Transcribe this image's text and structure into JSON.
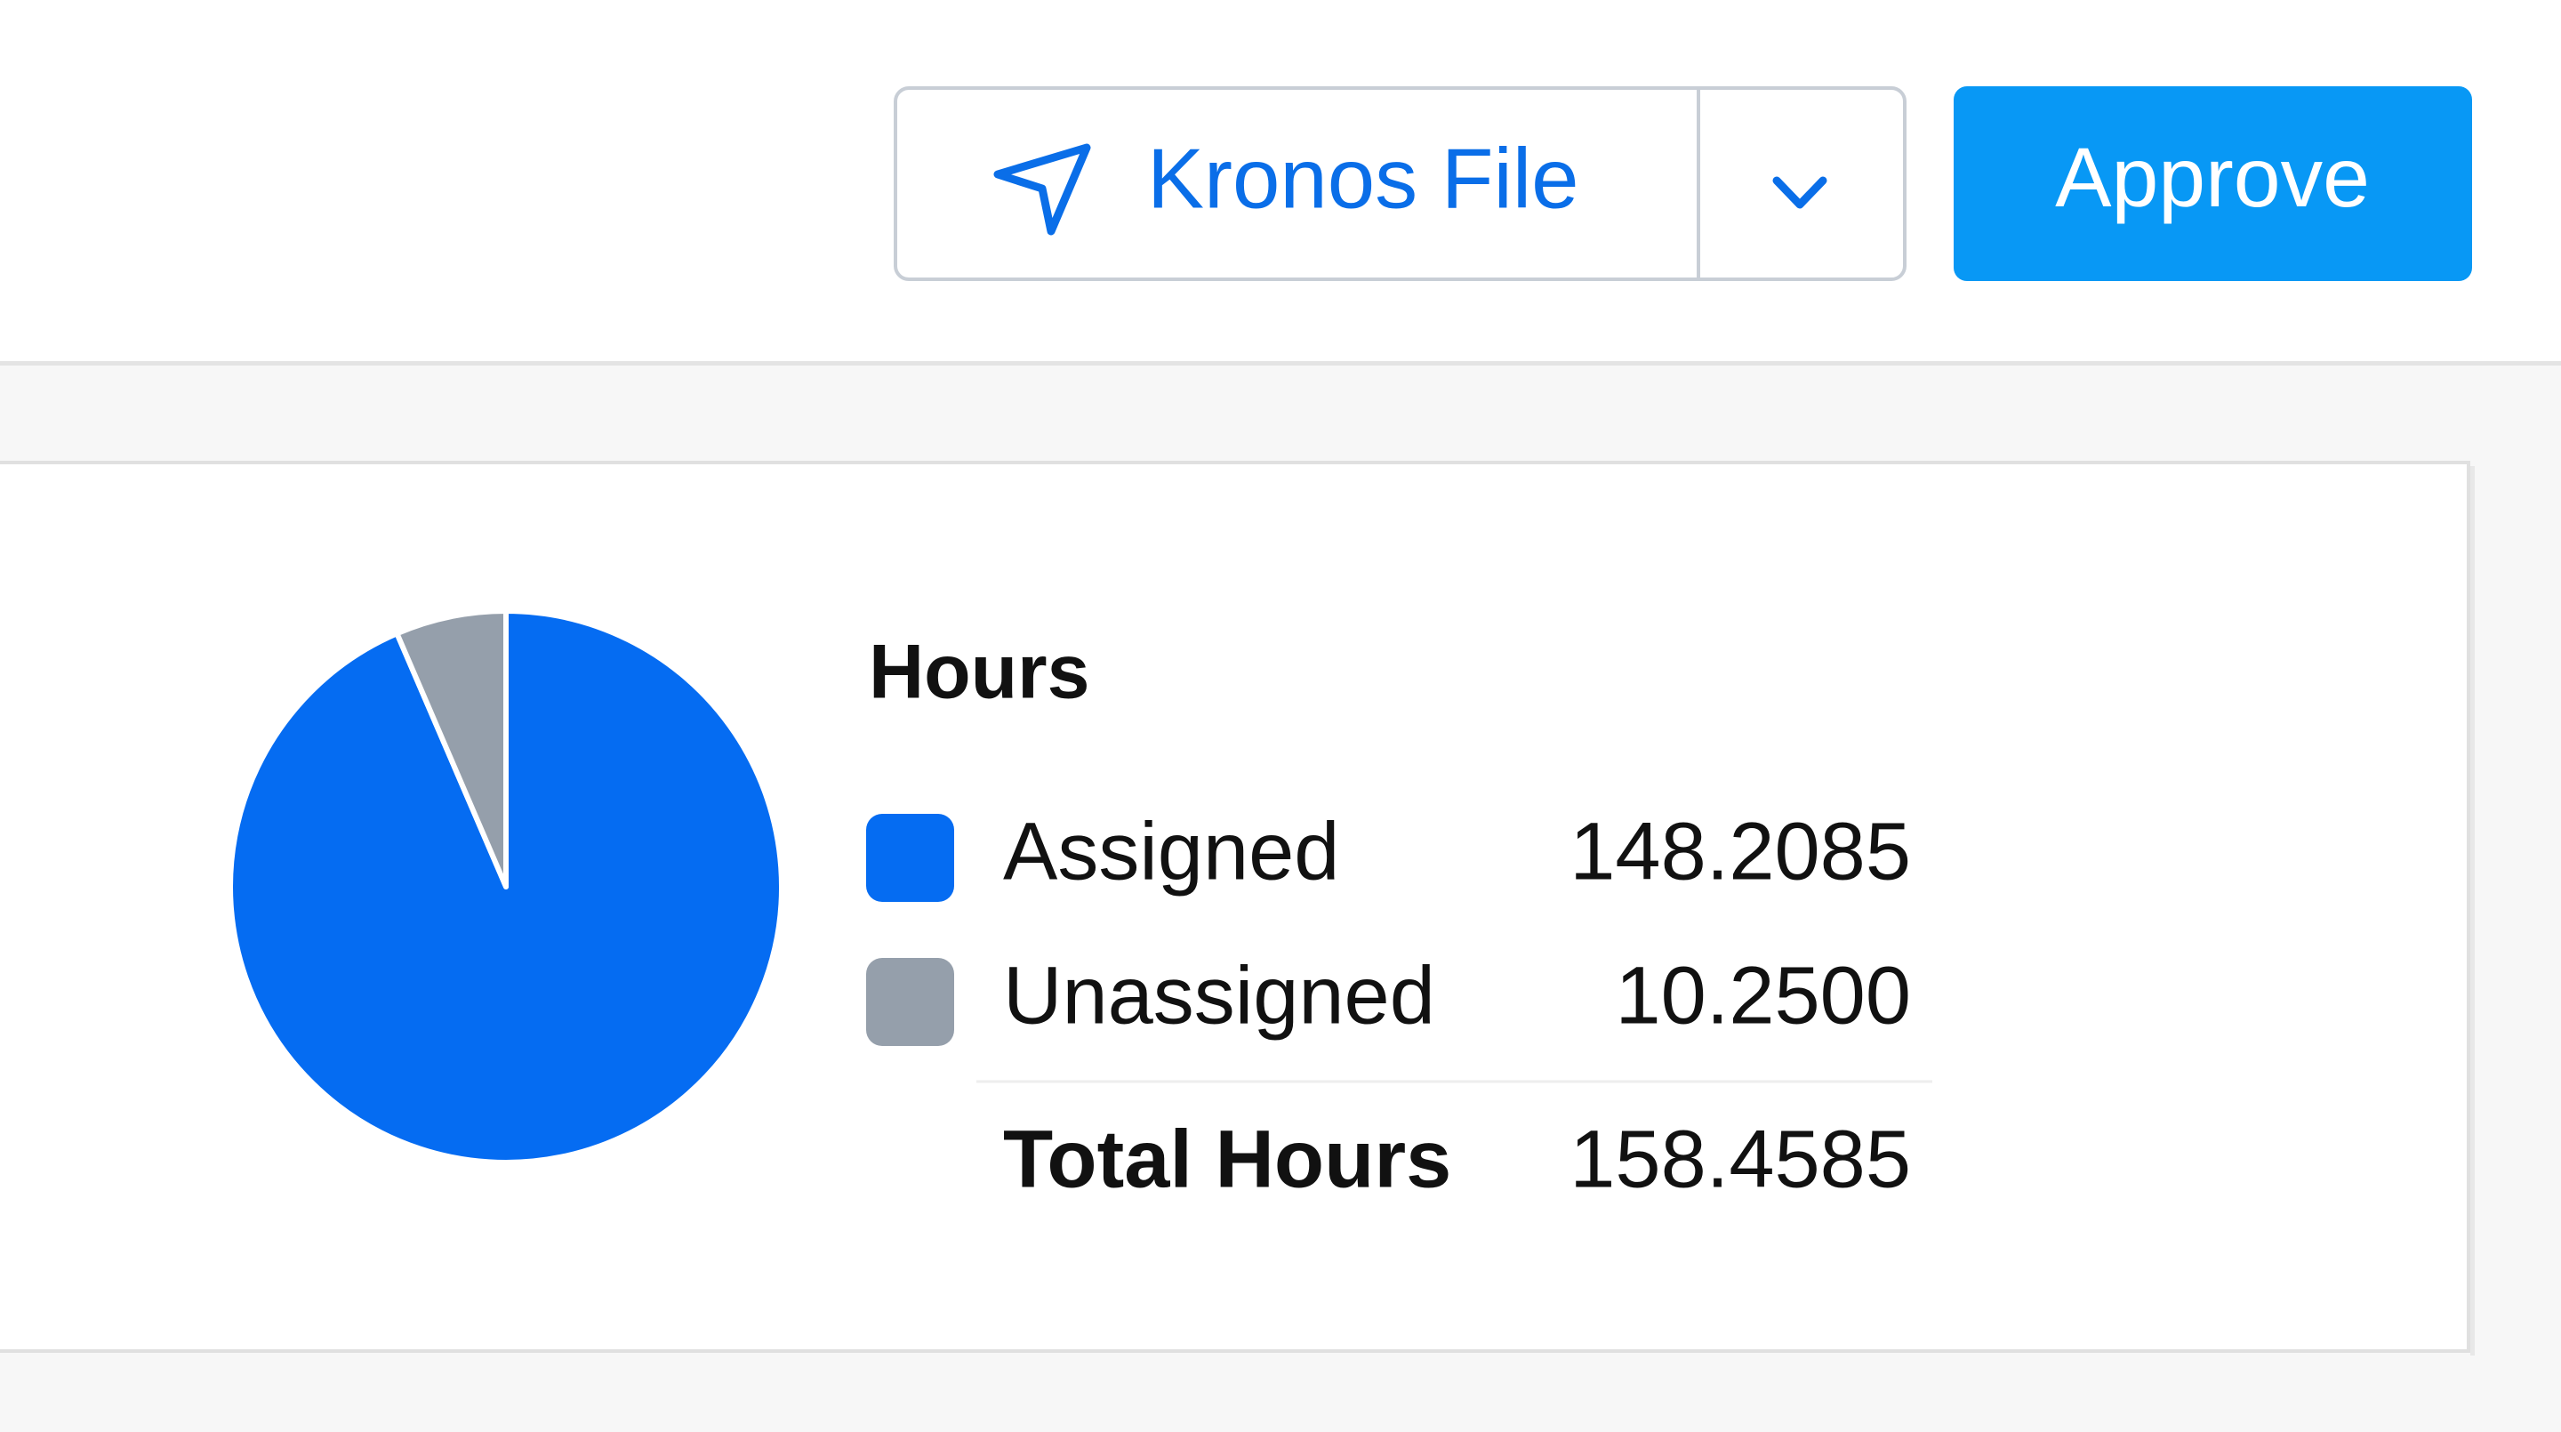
{
  "header": {
    "send_button": "Kronos File",
    "approve_button": "Approve"
  },
  "chart_data": {
    "type": "pie",
    "title": "Hours",
    "categories": [
      "Assigned",
      "Unassigned"
    ],
    "values": [
      148.2085,
      10.25
    ],
    "value_labels": [
      "148.2085",
      "10.2500"
    ],
    "colors": [
      "#056cf2",
      "#959fab"
    ],
    "total_label": "Total Hours",
    "total": 158.4585
  }
}
